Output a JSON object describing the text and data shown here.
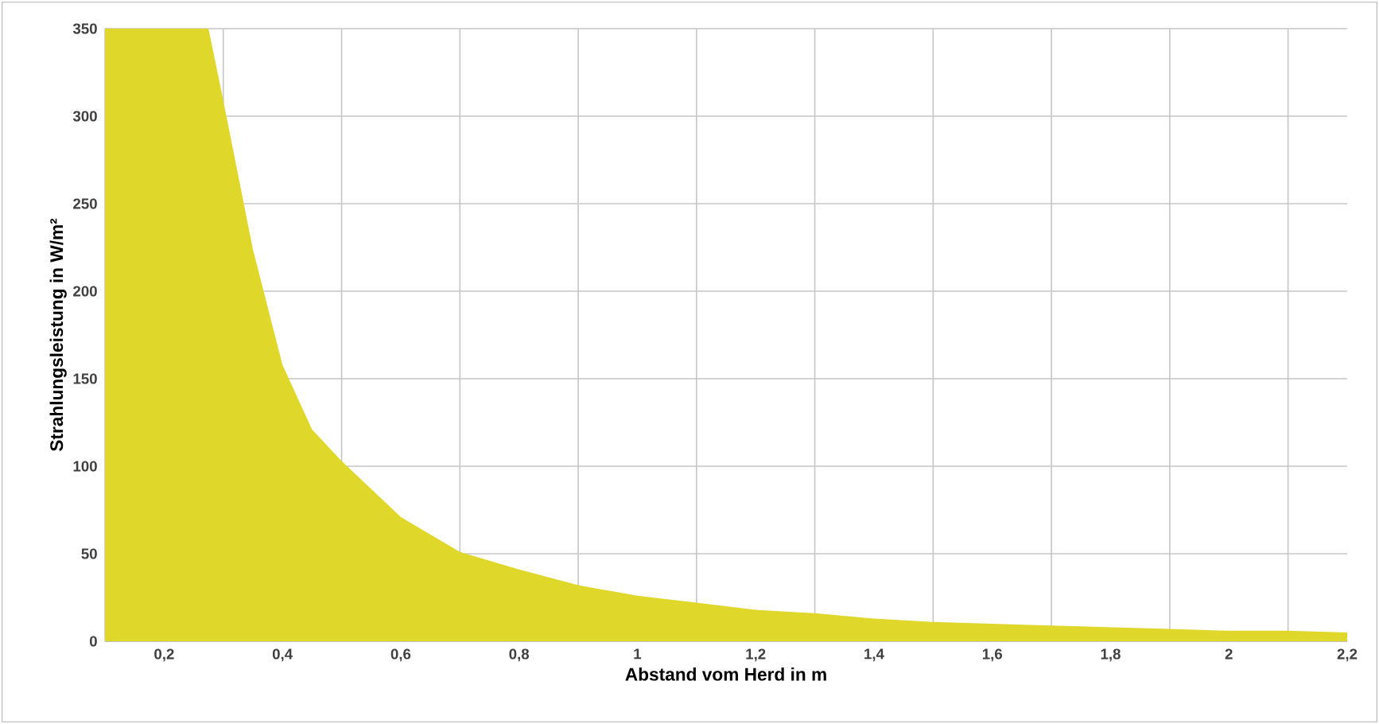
{
  "chart_data": {
    "type": "area",
    "xlabel": "Abstand vom Herd in m",
    "ylabel": "Strahlungsleistung in W/m²",
    "x": [
      0.1,
      0.2,
      0.275,
      0.3,
      0.35,
      0.4,
      0.45,
      0.5,
      0.6,
      0.7,
      0.8,
      0.9,
      1.0,
      1.1,
      1.2,
      1.3,
      1.4,
      1.5,
      1.6,
      1.7,
      1.8,
      1.9,
      2.0,
      2.1,
      2.2
    ],
    "values": [
      350,
      350,
      350,
      309,
      224,
      158,
      121,
      103,
      71,
      51,
      41,
      32,
      26,
      22,
      18,
      16,
      13,
      11,
      10,
      9,
      8,
      7,
      6,
      6,
      5
    ],
    "color": "#dfd72a",
    "xlim": [
      0.1,
      2.2
    ],
    "ylim": [
      0,
      350
    ],
    "xticks": [
      {
        "value": 0.2,
        "label": "0,2"
      },
      {
        "value": 0.3,
        "label": null
      },
      {
        "value": 0.4,
        "label": "0,4"
      },
      {
        "value": 0.5,
        "label": null
      },
      {
        "value": 0.6,
        "label": "0,6"
      },
      {
        "value": 0.7,
        "label": null
      },
      {
        "value": 0.8,
        "label": "0,8"
      },
      {
        "value": 0.9,
        "label": null
      },
      {
        "value": 1,
        "label": "1"
      },
      {
        "value": 1.1,
        "label": null
      },
      {
        "value": 1.2,
        "label": "1,2"
      },
      {
        "value": 1.3,
        "label": null
      },
      {
        "value": 1.4,
        "label": "1,4"
      },
      {
        "value": 1.5,
        "label": null
      },
      {
        "value": 1.6,
        "label": "1,6"
      },
      {
        "value": 1.7,
        "label": null
      },
      {
        "value": 1.8,
        "label": "1,8"
      },
      {
        "value": 1.9,
        "label": null
      },
      {
        "value": 2,
        "label": "2"
      },
      {
        "value": 2.1,
        "label": null
      },
      {
        "value": 2.2,
        "label": "2,2"
      }
    ],
    "yticks": [
      0,
      50,
      100,
      150,
      200,
      250,
      300,
      350
    ],
    "grid": true
  }
}
